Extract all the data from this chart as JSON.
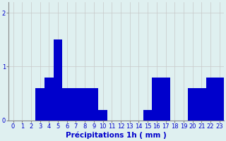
{
  "hours": [
    0,
    1,
    2,
    3,
    4,
    5,
    6,
    7,
    8,
    9,
    10,
    11,
    12,
    13,
    14,
    15,
    16,
    17,
    18,
    19,
    20,
    21,
    22,
    23
  ],
  "values": [
    0,
    0,
    0,
    0.6,
    0.8,
    1.5,
    0.6,
    0.6,
    0.6,
    0.6,
    0.2,
    0,
    0,
    0,
    0,
    0.2,
    0.8,
    0.8,
    0,
    0,
    0.6,
    0.6,
    0.8,
    0.8
  ],
  "bar_color": "#0000cc",
  "background_color": "#dff0f0",
  "grid_color": "#c8c8c8",
  "xlabel": "Précipitations 1h ( mm )",
  "ylim": [
    0,
    2.2
  ],
  "yticks": [
    0,
    1,
    2
  ],
  "xlabel_fontsize": 7.5,
  "tick_fontsize": 6,
  "label_color": "#0000cc"
}
